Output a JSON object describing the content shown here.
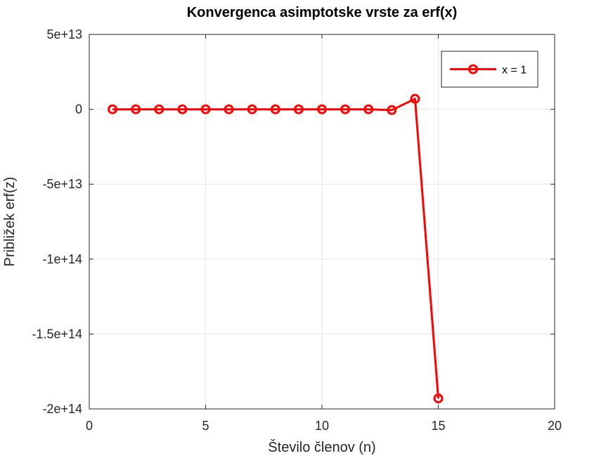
{
  "chart_data": {
    "type": "line",
    "title": "Konvergenca asimptotske vrste za erf(x)",
    "xlabel": "Število členov (n)",
    "ylabel": "Približek erf(z)",
    "xlim": [
      0,
      20
    ],
    "ylim": [
      -200000000000000,
      50000000000000
    ],
    "xticks": [
      0,
      5,
      10,
      15,
      20
    ],
    "xtick_labels": [
      "0",
      "5",
      "10",
      "15",
      "20"
    ],
    "yticks": [
      50000000000000,
      0,
      -50000000000000,
      -100000000000000,
      -150000000000000,
      -200000000000000
    ],
    "ytick_labels": [
      "5e+13",
      "0",
      "-5e+13",
      "-1e+14",
      "-1.5e+14",
      "-2e+14"
    ],
    "grid": true,
    "legend_position": "top-right",
    "series": [
      {
        "name": "x = 1",
        "color": "#ff0000",
        "marker": "circle",
        "x": [
          1,
          2,
          3,
          4,
          5,
          6,
          7,
          8,
          9,
          10,
          11,
          12,
          13,
          14,
          15
        ],
        "y": [
          0,
          0,
          0,
          0,
          0,
          0,
          0,
          0,
          0,
          0,
          0,
          0,
          -500000000000,
          7000000000000,
          -193000000000000
        ]
      }
    ]
  }
}
